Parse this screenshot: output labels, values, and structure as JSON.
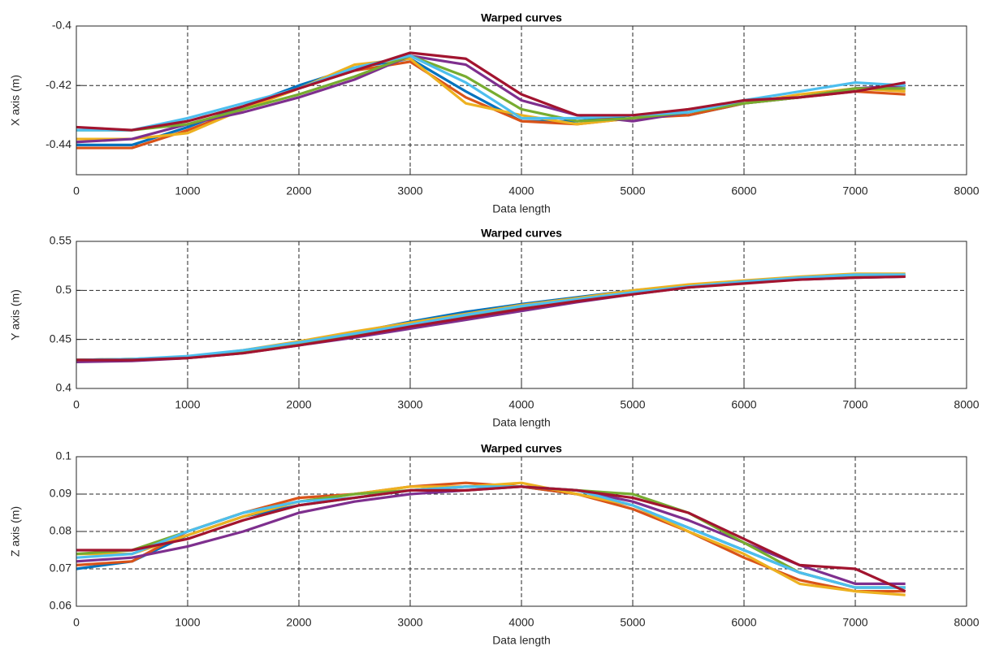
{
  "chart_data": [
    {
      "type": "line",
      "title": "Warped curves",
      "x_label": "Data length",
      "y_label": "X axis (m)",
      "x": [
        0,
        500,
        1000,
        1500,
        2000,
        2500,
        3000,
        3500,
        4000,
        4500,
        5000,
        5500,
        6000,
        6500,
        7000,
        7450
      ],
      "xlim": [
        0,
        8000
      ],
      "xticks": [
        0,
        1000,
        2000,
        3000,
        4000,
        5000,
        6000,
        7000,
        8000
      ],
      "ylim": [
        -0.45,
        -0.4
      ],
      "yticks": [
        -0.44,
        -0.42,
        -0.4
      ],
      "grid": true,
      "series": [
        {
          "color": "#0072BD",
          "values": [
            -0.44,
            -0.44,
            -0.434,
            -0.427,
            -0.42,
            -0.414,
            -0.411,
            -0.422,
            -0.432,
            -0.432,
            -0.43,
            -0.43,
            -0.426,
            -0.424,
            -0.421,
            -0.421
          ]
        },
        {
          "color": "#D95319",
          "values": [
            -0.441,
            -0.441,
            -0.435,
            -0.428,
            -0.421,
            -0.415,
            -0.412,
            -0.424,
            -0.432,
            -0.433,
            -0.431,
            -0.43,
            -0.426,
            -0.424,
            -0.422,
            -0.423
          ]
        },
        {
          "color": "#EDB120",
          "values": [
            -0.438,
            -0.438,
            -0.436,
            -0.428,
            -0.421,
            -0.413,
            -0.411,
            -0.426,
            -0.43,
            -0.433,
            -0.431,
            -0.428,
            -0.426,
            -0.423,
            -0.421,
            -0.422
          ]
        },
        {
          "color": "#7E2F8E",
          "values": [
            -0.439,
            -0.438,
            -0.433,
            -0.429,
            -0.424,
            -0.418,
            -0.41,
            -0.413,
            -0.425,
            -0.43,
            -0.432,
            -0.429,
            -0.425,
            -0.424,
            -0.421,
            -0.42
          ]
        },
        {
          "color": "#77AC30",
          "values": [
            -0.435,
            -0.435,
            -0.433,
            -0.428,
            -0.423,
            -0.417,
            -0.41,
            -0.417,
            -0.428,
            -0.432,
            -0.431,
            -0.429,
            -0.426,
            -0.424,
            -0.421,
            -0.421
          ]
        },
        {
          "color": "#4DBEEE",
          "values": [
            -0.435,
            -0.435,
            -0.431,
            -0.426,
            -0.421,
            -0.414,
            -0.41,
            -0.419,
            -0.431,
            -0.431,
            -0.43,
            -0.429,
            -0.425,
            -0.422,
            -0.419,
            -0.42
          ]
        },
        {
          "color": "#A2142F",
          "values": [
            -0.434,
            -0.435,
            -0.432,
            -0.427,
            -0.421,
            -0.415,
            -0.409,
            -0.411,
            -0.423,
            -0.43,
            -0.43,
            -0.428,
            -0.425,
            -0.424,
            -0.422,
            -0.419
          ]
        }
      ]
    },
    {
      "type": "line",
      "title": "Warped curves",
      "x_label": "Data length",
      "y_label": "Y axis (m)",
      "x": [
        0,
        500,
        1000,
        1500,
        2000,
        2500,
        3000,
        3500,
        4000,
        4500,
        5000,
        5500,
        6000,
        6500,
        7000,
        7450
      ],
      "xlim": [
        0,
        8000
      ],
      "xticks": [
        0,
        1000,
        2000,
        3000,
        4000,
        5000,
        6000,
        7000,
        8000
      ],
      "ylim": [
        0.4,
        0.55
      ],
      "yticks": [
        0.4,
        0.45,
        0.5,
        0.55
      ],
      "grid": true,
      "series": [
        {
          "color": "#0072BD",
          "values": [
            0.429,
            0.43,
            0.432,
            0.438,
            0.446,
            0.457,
            0.468,
            0.478,
            0.486,
            0.493,
            0.5,
            0.505,
            0.509,
            0.512,
            0.514,
            0.515
          ]
        },
        {
          "color": "#D95319",
          "values": [
            0.429,
            0.429,
            0.431,
            0.437,
            0.446,
            0.456,
            0.466,
            0.476,
            0.485,
            0.492,
            0.499,
            0.505,
            0.509,
            0.512,
            0.514,
            0.515
          ]
        },
        {
          "color": "#EDB120",
          "values": [
            0.429,
            0.43,
            0.432,
            0.439,
            0.448,
            0.458,
            0.467,
            0.476,
            0.485,
            0.492,
            0.5,
            0.506,
            0.51,
            0.514,
            0.517,
            0.517
          ]
        },
        {
          "color": "#7E2F8E",
          "values": [
            0.427,
            0.428,
            0.431,
            0.436,
            0.444,
            0.452,
            0.461,
            0.47,
            0.479,
            0.488,
            0.496,
            0.503,
            0.508,
            0.511,
            0.513,
            0.514
          ]
        },
        {
          "color": "#77AC30",
          "values": [
            0.429,
            0.43,
            0.432,
            0.437,
            0.445,
            0.454,
            0.464,
            0.474,
            0.483,
            0.49,
            0.497,
            0.503,
            0.508,
            0.512,
            0.515,
            0.516
          ]
        },
        {
          "color": "#4DBEEE",
          "values": [
            0.429,
            0.43,
            0.433,
            0.439,
            0.447,
            0.456,
            0.465,
            0.475,
            0.484,
            0.491,
            0.498,
            0.504,
            0.509,
            0.513,
            0.516,
            0.516
          ]
        },
        {
          "color": "#A2142F",
          "values": [
            0.429,
            0.429,
            0.431,
            0.436,
            0.444,
            0.453,
            0.463,
            0.472,
            0.481,
            0.489,
            0.496,
            0.503,
            0.507,
            0.511,
            0.513,
            0.514
          ]
        }
      ]
    },
    {
      "type": "line",
      "title": "Warped curves",
      "x_label": "Data length",
      "y_label": "Z axis (m)",
      "x": [
        0,
        500,
        1000,
        1500,
        2000,
        2500,
        3000,
        3500,
        4000,
        4500,
        5000,
        5500,
        6000,
        6500,
        7000,
        7450
      ],
      "xlim": [
        0,
        8000
      ],
      "xticks": [
        0,
        1000,
        2000,
        3000,
        4000,
        5000,
        6000,
        7000,
        8000
      ],
      "ylim": [
        0.06,
        0.1
      ],
      "yticks": [
        0.06,
        0.07,
        0.08,
        0.09,
        0.1
      ],
      "grid": true,
      "series": [
        {
          "color": "#0072BD",
          "values": [
            0.07,
            0.072,
            0.079,
            0.084,
            0.087,
            0.089,
            0.091,
            0.092,
            0.092,
            0.09,
            0.087,
            0.081,
            0.075,
            0.069,
            0.065,
            0.065
          ]
        },
        {
          "color": "#D95319",
          "values": [
            0.071,
            0.072,
            0.08,
            0.085,
            0.089,
            0.09,
            0.092,
            0.093,
            0.092,
            0.09,
            0.086,
            0.08,
            0.073,
            0.067,
            0.064,
            0.064
          ]
        },
        {
          "color": "#EDB120",
          "values": [
            0.074,
            0.074,
            0.079,
            0.084,
            0.088,
            0.09,
            0.092,
            0.092,
            0.093,
            0.09,
            0.087,
            0.08,
            0.074,
            0.066,
            0.064,
            0.063
          ]
        },
        {
          "color": "#7E2F8E",
          "values": [
            0.072,
            0.073,
            0.076,
            0.08,
            0.085,
            0.088,
            0.09,
            0.091,
            0.092,
            0.091,
            0.088,
            0.083,
            0.077,
            0.071,
            0.066,
            0.066
          ]
        },
        {
          "color": "#77AC30",
          "values": [
            0.074,
            0.075,
            0.08,
            0.085,
            0.088,
            0.09,
            0.091,
            0.092,
            0.092,
            0.091,
            0.09,
            0.085,
            0.077,
            0.069,
            0.065,
            0.065
          ]
        },
        {
          "color": "#4DBEEE",
          "values": [
            0.073,
            0.074,
            0.08,
            0.085,
            0.088,
            0.089,
            0.091,
            0.092,
            0.092,
            0.091,
            0.087,
            0.081,
            0.075,
            0.069,
            0.065,
            0.065
          ]
        },
        {
          "color": "#A2142F",
          "values": [
            0.075,
            0.075,
            0.078,
            0.083,
            0.087,
            0.089,
            0.091,
            0.091,
            0.092,
            0.091,
            0.089,
            0.085,
            0.078,
            0.071,
            0.07,
            0.064
          ]
        }
      ]
    }
  ]
}
